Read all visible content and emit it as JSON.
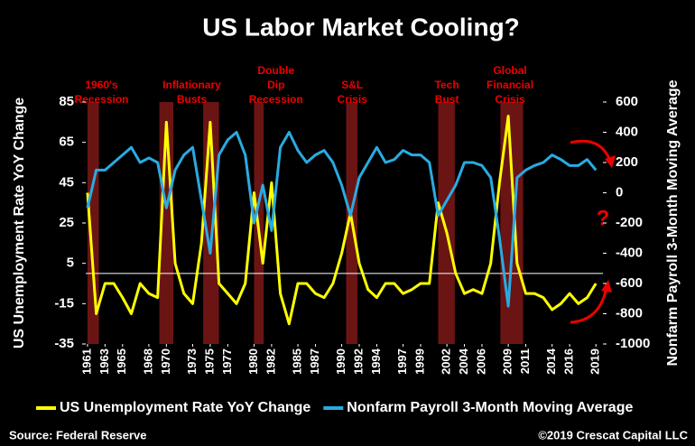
{
  "chart_data": {
    "type": "line",
    "title": "US Labor Market Cooling?",
    "y_label": "US Unemployment Rate YoY Change",
    "y2_label": "Nonfarm Payroll 3-Month Moving Average",
    "x": [
      1961,
      1962,
      1963,
      1964,
      1965,
      1966,
      1967,
      1968,
      1969,
      1970,
      1971,
      1972,
      1973,
      1974,
      1975,
      1976,
      1977,
      1978,
      1979,
      1980,
      1981,
      1982,
      1983,
      1984,
      1985,
      1986,
      1987,
      1988,
      1989,
      1990,
      1991,
      1992,
      1993,
      1994,
      1995,
      1996,
      1997,
      1998,
      1999,
      2000,
      2001,
      2002,
      2003,
      2004,
      2005,
      2006,
      2007,
      2008,
      2009,
      2010,
      2011,
      2012,
      2013,
      2014,
      2015,
      2016,
      2017,
      2018,
      2019
    ],
    "series": [
      {
        "name": "US Unemployment Rate YoY Change",
        "color": "#ffff00",
        "axis": "y",
        "values": [
          40,
          -20,
          -5,
          -5,
          -12,
          -20,
          -5,
          -10,
          -12,
          75,
          5,
          -10,
          -15,
          15,
          75,
          -5,
          -10,
          -15,
          -5,
          40,
          5,
          45,
          -10,
          -25,
          -5,
          -5,
          -10,
          -12,
          -5,
          10,
          30,
          5,
          -8,
          -12,
          -5,
          -5,
          -10,
          -8,
          -5,
          -5,
          35,
          20,
          0,
          -10,
          -8,
          -10,
          5,
          45,
          78,
          5,
          -10,
          -10,
          -12,
          -18,
          -15,
          -10,
          -15,
          -12,
          -5
        ]
      },
      {
        "name": "Nonfarm Payroll 3-Month Moving Average",
        "color": "#29abe2",
        "axis": "y2",
        "values": [
          -100,
          150,
          150,
          200,
          250,
          300,
          200,
          230,
          200,
          -100,
          150,
          250,
          300,
          -50,
          -400,
          250,
          350,
          400,
          250,
          -200,
          50,
          -250,
          300,
          400,
          280,
          200,
          250,
          280,
          200,
          50,
          -150,
          100,
          200,
          300,
          200,
          220,
          280,
          250,
          250,
          200,
          -150,
          -50,
          50,
          200,
          200,
          180,
          100,
          -300,
          -750,
          100,
          150,
          180,
          200,
          250,
          220,
          180,
          180,
          220,
          150
        ]
      }
    ],
    "xlim": [
      1960.8,
      2019.8
    ],
    "xticks": [
      1961,
      1963,
      1965,
      1968,
      1970,
      1973,
      1975,
      1977,
      1980,
      1982,
      1985,
      1987,
      1990,
      1992,
      1994,
      1997,
      1999,
      2002,
      2004,
      2006,
      2009,
      2011,
      2014,
      2016,
      2019
    ],
    "ylim": [
      -35,
      85
    ],
    "yticks": [
      -35,
      -15,
      5,
      25,
      45,
      65,
      85
    ],
    "y2lim": [
      -1000,
      600
    ],
    "y2ticks": [
      -1000,
      -800,
      -600,
      -400,
      -200,
      0,
      200,
      400,
      600
    ],
    "recessions": [
      {
        "start": 1961,
        "end": 1962.3
      },
      {
        "start": 1969.2,
        "end": 1970.8
      },
      {
        "start": 1974.2,
        "end": 1976
      },
      {
        "start": 1980,
        "end": 1981.1
      },
      {
        "start": 1990.5,
        "end": 1991.8
      },
      {
        "start": 2001,
        "end": 2002.9
      },
      {
        "start": 2008.1,
        "end": 2010.7
      }
    ],
    "recession_color": "#6b1414",
    "annotations": [
      {
        "x": 1962.6,
        "text": [
          "1960's",
          "Recession"
        ]
      },
      {
        "x": 1972.9,
        "text": [
          "Inflationary",
          "Busts"
        ]
      },
      {
        "x": 1982.5,
        "text": [
          "Double",
          "Dip",
          "Recession"
        ]
      },
      {
        "x": 1991.2,
        "text": [
          "S&L",
          "Crisis"
        ]
      },
      {
        "x": 2002,
        "text": [
          "Tech",
          "Bust"
        ]
      },
      {
        "x": 2009.2,
        "text": [
          "Global",
          "Financial",
          "Crisis"
        ]
      }
    ],
    "question_mark": "?",
    "source": "Source: Federal Reserve",
    "copyright": "©2019 Crescat Capital LLC"
  }
}
